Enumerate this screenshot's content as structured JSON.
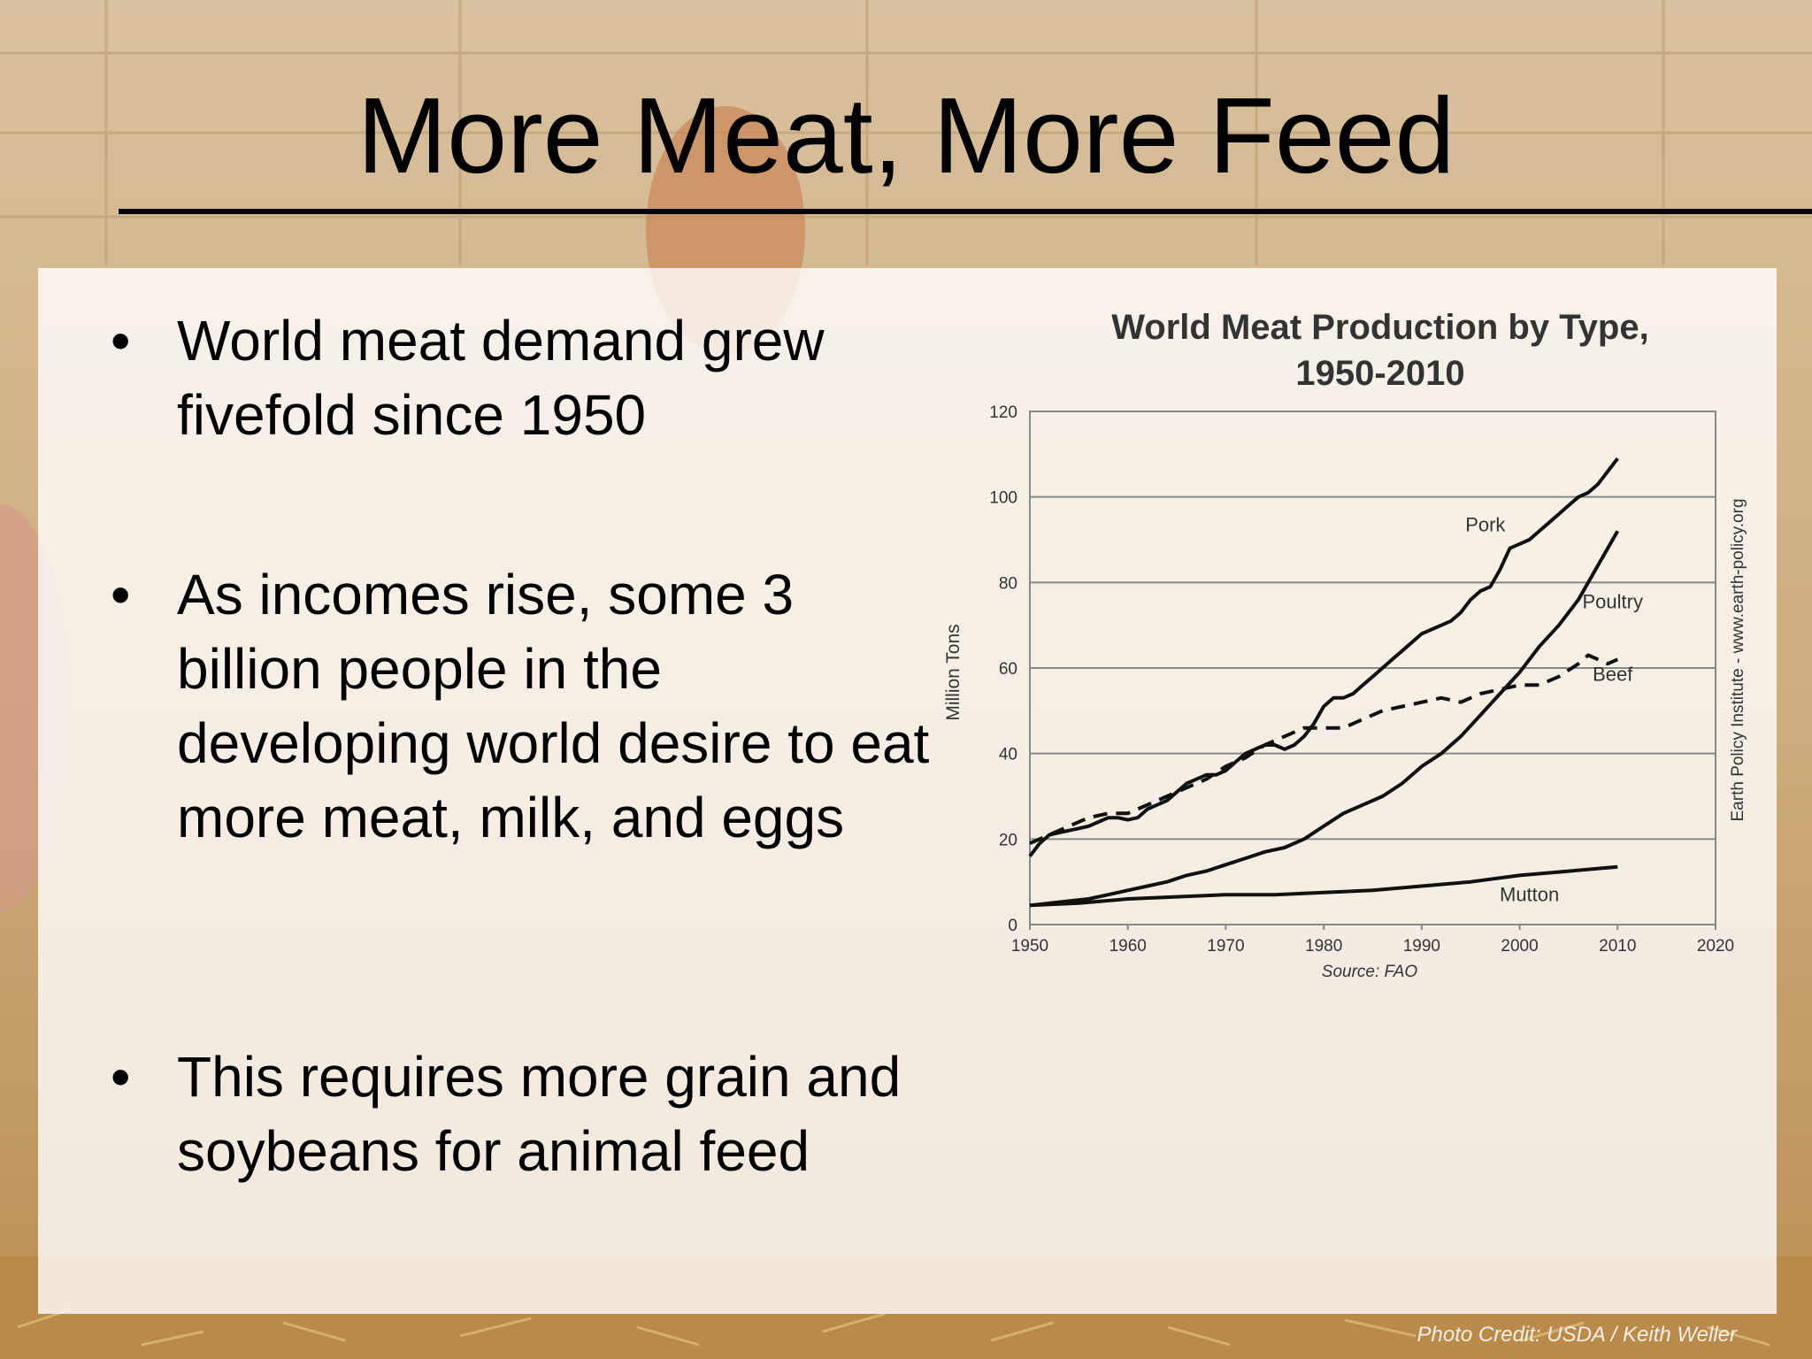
{
  "slide": {
    "title": "More Meat, More Feed",
    "bullets": [
      "World meat demand grew fivefold since 1950",
      "As incomes rise, some 3 billion people in the developing world desire to eat more meat, milk, and eggs",
      "This requires more grain and soybeans for animal feed"
    ],
    "bullet_symbol": "•",
    "photo_credit": "Photo Credit: USDA / Keith Weller"
  },
  "chart_data": {
    "type": "line",
    "title": "World Meat Production by Type, 1950-2010",
    "title_line1": "World Meat Production by Type,",
    "title_line2": "1950-2010",
    "ylabel": "Million Tons",
    "xlabel": "",
    "source": "Source: FAO",
    "side_credit": "Earth Policy Institute - www.earth-policy.org",
    "xlim": [
      1950,
      2020
    ],
    "ylim": [
      0,
      120
    ],
    "x_ticks": [
      1950,
      1960,
      1970,
      1980,
      1990,
      2000,
      2010,
      2020
    ],
    "y_ticks": [
      0,
      20,
      40,
      60,
      80,
      100,
      120
    ],
    "grid": true,
    "legend": "inline labels",
    "series": [
      {
        "name": "Pork",
        "dashed": false,
        "points": [
          [
            1950,
            16
          ],
          [
            1951,
            19
          ],
          [
            1952,
            21
          ],
          [
            1953,
            21.5
          ],
          [
            1954,
            22
          ],
          [
            1955,
            22.5
          ],
          [
            1956,
            23
          ],
          [
            1957,
            24
          ],
          [
            1958,
            25
          ],
          [
            1959,
            25
          ],
          [
            1960,
            24.5
          ],
          [
            1961,
            25
          ],
          [
            1962,
            27
          ],
          [
            1963,
            28
          ],
          [
            1964,
            29
          ],
          [
            1965,
            31
          ],
          [
            1966,
            33
          ],
          [
            1967,
            34
          ],
          [
            1968,
            35
          ],
          [
            1969,
            35
          ],
          [
            1970,
            36
          ],
          [
            1971,
            38
          ],
          [
            1972,
            40
          ],
          [
            1973,
            41
          ],
          [
            1974,
            42
          ],
          [
            1975,
            42
          ],
          [
            1976,
            41
          ],
          [
            1977,
            42
          ],
          [
            1978,
            44
          ],
          [
            1979,
            47
          ],
          [
            1980,
            51
          ],
          [
            1981,
            53
          ],
          [
            1982,
            53
          ],
          [
            1983,
            54
          ],
          [
            1984,
            56
          ],
          [
            1985,
            58
          ],
          [
            1986,
            60
          ],
          [
            1987,
            62
          ],
          [
            1988,
            64
          ],
          [
            1989,
            66
          ],
          [
            1990,
            68
          ],
          [
            1991,
            69
          ],
          [
            1992,
            70
          ],
          [
            1993,
            71
          ],
          [
            1994,
            73
          ],
          [
            1995,
            76
          ],
          [
            1996,
            78
          ],
          [
            1997,
            79
          ],
          [
            1998,
            83
          ],
          [
            1999,
            88
          ],
          [
            2000,
            89
          ],
          [
            2001,
            90
          ],
          [
            2002,
            92
          ],
          [
            2003,
            94
          ],
          [
            2004,
            96
          ],
          [
            2005,
            98
          ],
          [
            2006,
            100
          ],
          [
            2007,
            101
          ],
          [
            2008,
            103
          ],
          [
            2009,
            106
          ],
          [
            2010,
            109
          ]
        ]
      },
      {
        "name": "Poultry",
        "dashed": false,
        "points": [
          [
            1950,
            4.5
          ],
          [
            1952,
            5
          ],
          [
            1954,
            5.5
          ],
          [
            1956,
            6
          ],
          [
            1958,
            7
          ],
          [
            1960,
            8
          ],
          [
            1962,
            9
          ],
          [
            1964,
            10
          ],
          [
            1966,
            11.5
          ],
          [
            1968,
            12.5
          ],
          [
            1970,
            14
          ],
          [
            1972,
            15.5
          ],
          [
            1974,
            17
          ],
          [
            1976,
            18
          ],
          [
            1978,
            20
          ],
          [
            1980,
            23
          ],
          [
            1982,
            26
          ],
          [
            1984,
            28
          ],
          [
            1986,
            30
          ],
          [
            1988,
            33
          ],
          [
            1990,
            37
          ],
          [
            1992,
            40
          ],
          [
            1994,
            44
          ],
          [
            1996,
            49
          ],
          [
            1998,
            54
          ],
          [
            2000,
            59
          ],
          [
            2002,
            65
          ],
          [
            2004,
            70
          ],
          [
            2006,
            76
          ],
          [
            2008,
            84
          ],
          [
            2010,
            92
          ]
        ]
      },
      {
        "name": "Beef",
        "dashed": true,
        "points": [
          [
            1950,
            19
          ],
          [
            1952,
            21
          ],
          [
            1954,
            23
          ],
          [
            1956,
            25
          ],
          [
            1958,
            26
          ],
          [
            1960,
            26
          ],
          [
            1962,
            28
          ],
          [
            1964,
            30
          ],
          [
            1966,
            32
          ],
          [
            1968,
            34
          ],
          [
            1970,
            37
          ],
          [
            1972,
            39
          ],
          [
            1974,
            42
          ],
          [
            1976,
            44
          ],
          [
            1978,
            46
          ],
          [
            1980,
            46
          ],
          [
            1982,
            46
          ],
          [
            1984,
            48
          ],
          [
            1986,
            50
          ],
          [
            1988,
            51
          ],
          [
            1990,
            52
          ],
          [
            1992,
            53
          ],
          [
            1994,
            52
          ],
          [
            1996,
            54
          ],
          [
            1998,
            55
          ],
          [
            2000,
            56
          ],
          [
            2002,
            56
          ],
          [
            2004,
            58
          ],
          [
            2006,
            61
          ],
          [
            2007,
            63
          ],
          [
            2008,
            62
          ],
          [
            2009,
            61
          ],
          [
            2010,
            62
          ]
        ]
      },
      {
        "name": "Mutton",
        "dashed": false,
        "points": [
          [
            1950,
            4.5
          ],
          [
            1955,
            5
          ],
          [
            1960,
            6
          ],
          [
            1965,
            6.5
          ],
          [
            1970,
            7
          ],
          [
            1975,
            7
          ],
          [
            1980,
            7.5
          ],
          [
            1985,
            8
          ],
          [
            1990,
            9
          ],
          [
            1995,
            10
          ],
          [
            2000,
            11.5
          ],
          [
            2005,
            12.5
          ],
          [
            2010,
            13.5
          ]
        ]
      }
    ],
    "series_labels": [
      {
        "name": "Pork",
        "x": 1996.5,
        "y": 92
      },
      {
        "name": "Poultry",
        "x": 2009.5,
        "y": 74
      },
      {
        "name": "Beef",
        "x": 2009.5,
        "y": 57
      },
      {
        "name": "Mutton",
        "x": 2001,
        "y": 5.5
      }
    ]
  }
}
